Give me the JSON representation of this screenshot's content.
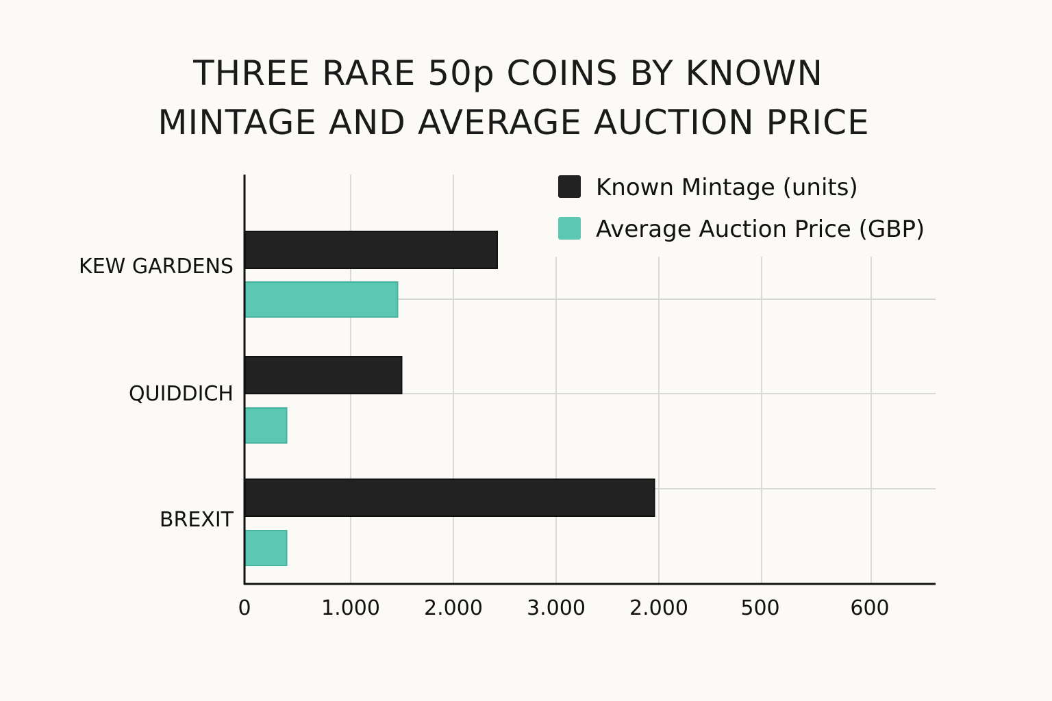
{
  "chart_data": {
    "type": "bar",
    "orientation": "horizontal",
    "title": "THREE RARE 50p COINS BY KNOWN MINTAGE AND AVERAGE AUCTION PRICE",
    "title_lines": [
      "THREE RARE 50p COINS BY KNOWN",
      "MINTAGE AND AVERAGE AUCTION PRICE"
    ],
    "categories": [
      "KEW GARDENS",
      "QUIDDICH",
      "BREXIT"
    ],
    "series": [
      {
        "name": "Known Mintage (units)",
        "color": "#222222",
        "values": [
          2460,
          1530,
          3990
        ]
      },
      {
        "name": "Average Auction Price (GBP)",
        "color": "#5cc8b4",
        "values": [
          1490,
          410,
          410
        ]
      }
    ],
    "x_tick_labels": [
      "0",
      "1.000",
      "2.000",
      "3.000",
      "2.000",
      "500",
      "600"
    ],
    "xlim": [
      0,
      6700
    ],
    "grid": true,
    "legend_position": "top-right",
    "xlabel": "",
    "ylabel": ""
  }
}
